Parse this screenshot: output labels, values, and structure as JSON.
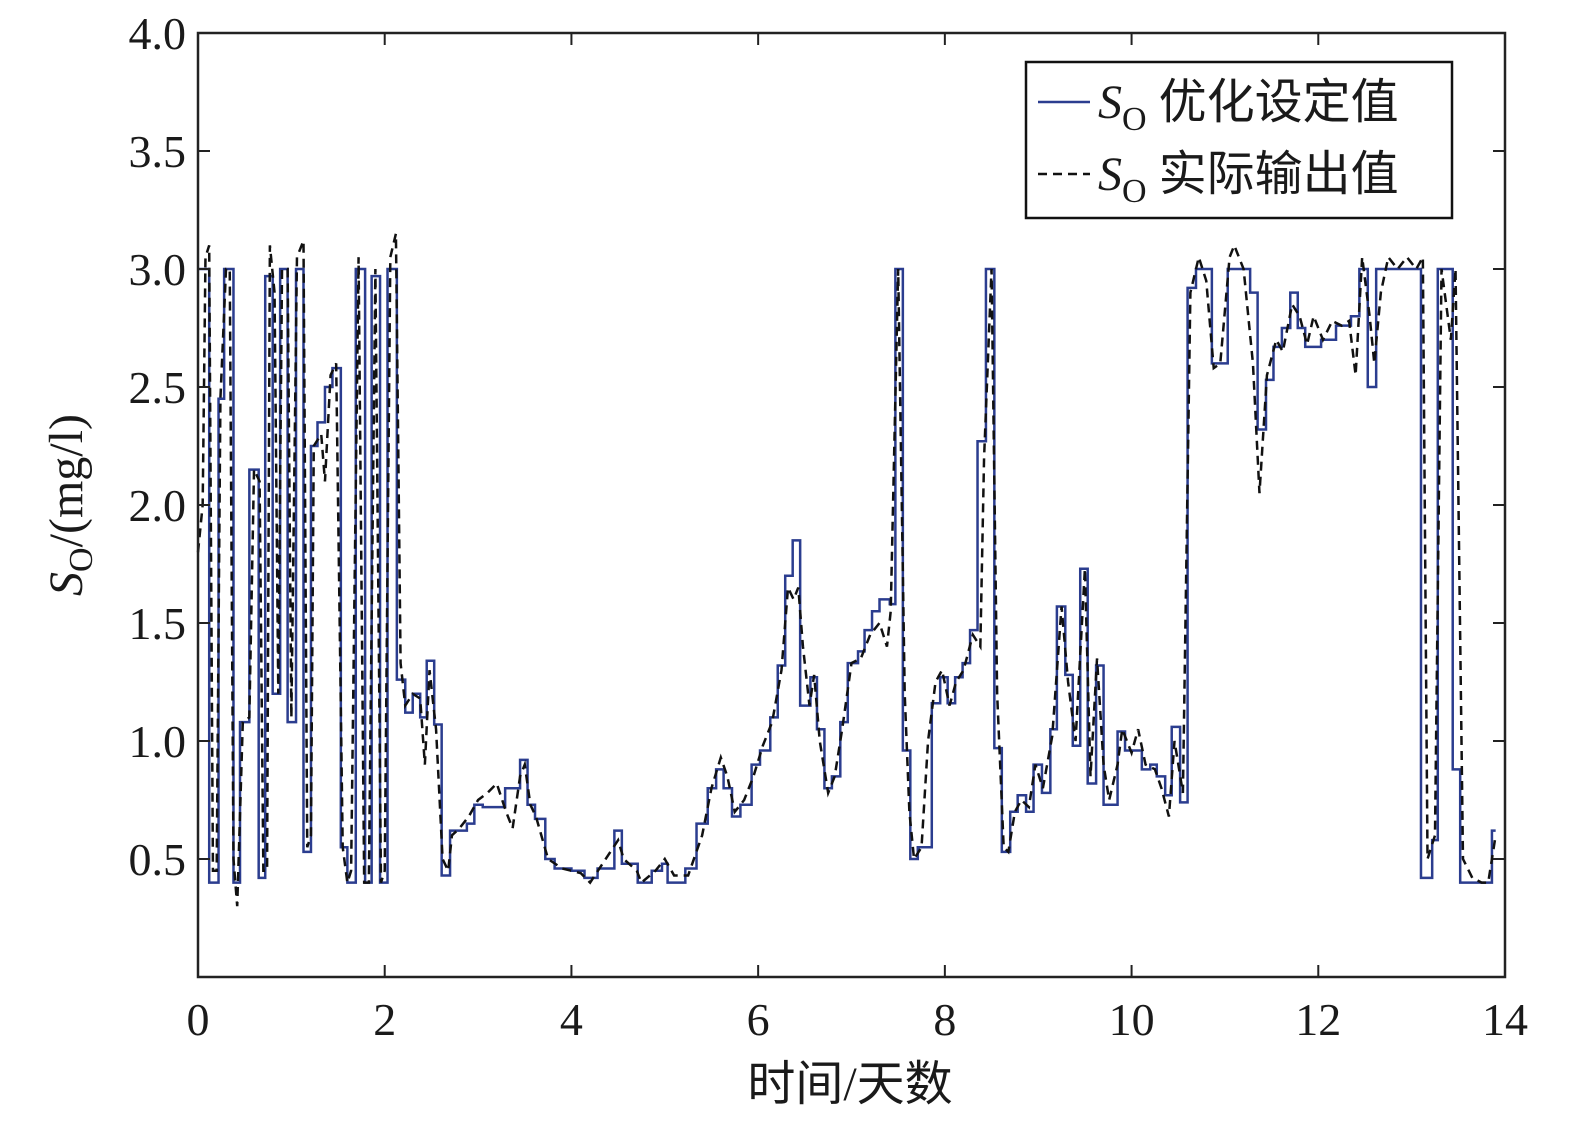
{
  "chart_data": {
    "type": "line",
    "xlabel": "时间/天数",
    "ylabel": {
      "symbol": "S",
      "subscript": "O",
      "text": "/(mg/l)"
    },
    "legend_symbol": {
      "symbol": "S",
      "subscript": "O"
    },
    "legend": "upper right",
    "xlim": [
      0,
      14
    ],
    "xticks": [
      0,
      2,
      4,
      6,
      8,
      10,
      12,
      14
    ],
    "ylim": [
      0,
      4
    ],
    "yticks": [
      0.5,
      {
        "value": 1,
        "label": "1.0"
      },
      1.5,
      {
        "value": 2,
        "label": "2.0"
      },
      2.5,
      {
        "value": 3,
        "label": "3.0"
      },
      3.5,
      {
        "value": 4,
        "label": "4.0"
      }
    ],
    "series": [
      {
        "name": "优化设定值",
        "color": "#2b3d8f",
        "step": "post",
        "x": [
          0,
          0.12,
          0.22,
          0.28,
          0.38,
          0.45,
          0.55,
          0.65,
          0.72,
          0.8,
          0.88,
          0.96,
          1.05,
          1.13,
          1.21,
          1.28,
          1.36,
          1.44,
          1.53,
          1.6,
          1.69,
          1.79,
          1.86,
          1.95,
          2.03,
          2.13,
          2.22,
          2.3,
          2.38,
          2.45,
          2.53,
          2.61,
          2.7,
          2.88,
          2.96,
          3.05,
          3.29,
          3.45,
          3.53,
          3.61,
          3.72,
          3.82,
          4.0,
          4.14,
          4.28,
          4.46,
          4.54,
          4.71,
          4.86,
          4.97,
          5.03,
          5.22,
          5.34,
          5.46,
          5.55,
          5.63,
          5.72,
          5.81,
          5.93,
          6.02,
          6.13,
          6.21,
          6.29,
          6.37,
          6.45,
          6.56,
          6.63,
          6.71,
          6.79,
          6.88,
          6.96,
          7.07,
          7.14,
          7.22,
          7.3,
          7.41,
          7.47,
          7.55,
          7.63,
          7.71,
          7.86,
          7.95,
          8.03,
          8.11,
          8.19,
          8.27,
          8.35,
          8.44,
          8.53,
          8.61,
          8.7,
          8.78,
          8.87,
          8.95,
          9.04,
          9.13,
          9.2,
          9.29,
          9.37,
          9.45,
          9.53,
          9.62,
          9.7,
          9.85,
          9.93,
          10.11,
          10.2,
          10.27,
          10.36,
          10.43,
          10.52,
          10.6,
          10.69,
          10.86,
          11.03,
          11.27,
          11.35,
          11.44,
          11.52,
          11.61,
          11.7,
          11.78,
          11.86,
          12.03,
          12.19,
          12.35,
          12.44,
          12.53,
          12.62,
          13.1,
          13.22,
          13.28,
          13.44,
          13.52,
          13.86,
          13.9
        ],
        "values": [
          3.0,
          0.4,
          2.45,
          3.0,
          0.4,
          1.08,
          2.15,
          0.42,
          2.97,
          1.2,
          3.0,
          1.08,
          3.0,
          0.53,
          2.25,
          2.35,
          2.5,
          2.58,
          0.55,
          0.4,
          3.0,
          0.4,
          2.97,
          0.4,
          3.0,
          1.26,
          1.12,
          1.2,
          1.1,
          1.34,
          1.07,
          0.43,
          0.62,
          0.65,
          0.73,
          0.72,
          0.8,
          0.92,
          0.73,
          0.67,
          0.5,
          0.46,
          0.45,
          0.42,
          0.46,
          0.62,
          0.48,
          0.4,
          0.45,
          0.48,
          0.4,
          0.46,
          0.65,
          0.8,
          0.88,
          0.8,
          0.68,
          0.73,
          0.9,
          0.96,
          1.1,
          1.32,
          1.7,
          1.85,
          1.15,
          1.27,
          1.05,
          0.8,
          0.85,
          1.08,
          1.33,
          1.38,
          1.47,
          1.55,
          1.6,
          1.58,
          3.0,
          0.96,
          0.5,
          0.55,
          1.16,
          1.27,
          1.16,
          1.27,
          1.33,
          1.47,
          2.27,
          3.0,
          0.97,
          0.53,
          0.7,
          0.77,
          0.7,
          0.9,
          0.78,
          1.05,
          1.57,
          1.28,
          0.98,
          1.73,
          0.82,
          1.32,
          0.73,
          1.04,
          0.96,
          0.88,
          0.9,
          0.85,
          0.77,
          1.06,
          0.74,
          2.92,
          3.0,
          2.6,
          3.0,
          2.9,
          2.32,
          2.53,
          2.67,
          2.75,
          2.9,
          2.75,
          2.67,
          2.7,
          2.76,
          2.8,
          3.0,
          2.5,
          3.0,
          0.42,
          0.58,
          3.0,
          0.88,
          0.4,
          0.62,
          0.62
        ]
      },
      {
        "name": "实际输出值",
        "color": "#111111",
        "dash": true,
        "x": [
          0,
          0.05,
          0.08,
          0.12,
          0.16,
          0.2,
          0.24,
          0.3,
          0.34,
          0.38,
          0.42,
          0.48,
          0.55,
          0.6,
          0.66,
          0.7,
          0.74,
          0.77,
          0.82,
          0.86,
          0.9,
          0.96,
          1.0,
          1.06,
          1.13,
          1.17,
          1.21,
          1.24,
          1.32,
          1.36,
          1.42,
          1.48,
          1.55,
          1.6,
          1.64,
          1.72,
          1.78,
          1.83,
          1.9,
          1.96,
          2.0,
          2.06,
          2.12,
          2.17,
          2.22,
          2.3,
          2.38,
          2.43,
          2.48,
          2.55,
          2.62,
          2.68,
          2.72,
          2.8,
          2.9,
          3.0,
          3.1,
          3.2,
          3.3,
          3.37,
          3.45,
          3.5,
          3.56,
          3.62,
          3.75,
          3.9,
          4.1,
          4.2,
          4.3,
          4.5,
          4.56,
          4.7,
          4.75,
          4.9,
          5.0,
          5.1,
          5.25,
          5.4,
          5.5,
          5.6,
          5.67,
          5.75,
          5.85,
          5.95,
          6.05,
          6.15,
          6.25,
          6.32,
          6.38,
          6.43,
          6.48,
          6.55,
          6.6,
          6.66,
          6.75,
          6.82,
          6.9,
          7.0,
          7.1,
          7.2,
          7.3,
          7.38,
          7.42,
          7.5,
          7.57,
          7.62,
          7.67,
          7.75,
          7.82,
          7.9,
          7.97,
          8.05,
          8.12,
          8.2,
          8.3,
          8.38,
          8.42,
          8.5,
          8.56,
          8.63,
          8.68,
          8.75,
          8.82,
          8.9,
          8.97,
          9.05,
          9.15,
          9.25,
          9.32,
          9.4,
          9.5,
          9.56,
          9.63,
          9.7,
          9.76,
          9.85,
          9.9,
          10.0,
          10.07,
          10.15,
          10.25,
          10.32,
          10.4,
          10.46,
          10.55,
          10.63,
          10.72,
          10.8,
          10.88,
          10.95,
          11.05,
          11.1,
          11.2,
          11.3,
          11.37,
          11.45,
          11.55,
          11.62,
          11.72,
          11.8,
          11.88,
          11.95,
          12.05,
          12.15,
          12.25,
          12.33,
          12.4,
          12.47,
          12.55,
          12.6,
          12.67,
          12.75,
          12.85,
          12.95,
          13.05,
          13.12,
          13.17,
          13.25,
          13.32,
          13.42,
          13.47,
          13.55,
          13.65,
          13.75,
          13.82,
          13.9
        ],
        "values": [
          1.8,
          2.0,
          3.05,
          3.1,
          0.45,
          0.45,
          2.45,
          3.0,
          3.0,
          0.5,
          0.3,
          1.08,
          1.1,
          2.15,
          2.1,
          0.45,
          0.45,
          3.1,
          2.9,
          1.2,
          3.0,
          3.0,
          1.1,
          3.05,
          3.12,
          0.55,
          0.6,
          2.25,
          2.3,
          2.1,
          2.55,
          2.6,
          0.55,
          0.4,
          0.45,
          3.05,
          0.4,
          0.4,
          3.0,
          0.4,
          0.45,
          3.05,
          3.15,
          1.33,
          1.15,
          1.2,
          1.18,
          0.9,
          1.3,
          1.05,
          0.5,
          0.45,
          0.6,
          0.63,
          0.68,
          0.75,
          0.78,
          0.82,
          0.7,
          0.63,
          0.85,
          0.9,
          0.73,
          0.68,
          0.5,
          0.46,
          0.44,
          0.4,
          0.46,
          0.58,
          0.5,
          0.45,
          0.4,
          0.45,
          0.5,
          0.43,
          0.43,
          0.6,
          0.8,
          0.93,
          0.85,
          0.7,
          0.75,
          0.85,
          0.98,
          1.08,
          1.3,
          1.65,
          1.6,
          1.65,
          1.4,
          1.15,
          1.28,
          1.0,
          0.78,
          0.85,
          1.05,
          1.33,
          1.35,
          1.45,
          1.5,
          1.4,
          1.55,
          3.0,
          1.2,
          0.7,
          0.5,
          0.55,
          1.0,
          1.25,
          1.3,
          1.15,
          1.25,
          1.3,
          1.45,
          1.4,
          2.2,
          3.0,
          1.2,
          0.55,
          0.53,
          0.7,
          0.75,
          0.72,
          0.9,
          0.8,
          1.02,
          1.57,
          1.25,
          1.0,
          1.73,
          0.85,
          1.35,
          0.9,
          0.75,
          0.9,
          1.05,
          0.95,
          1.05,
          0.9,
          0.88,
          0.8,
          0.68,
          1.0,
          0.78,
          2.9,
          3.05,
          2.95,
          2.58,
          2.6,
          3.05,
          3.1,
          3.0,
          2.6,
          2.05,
          2.55,
          2.7,
          2.65,
          2.85,
          2.8,
          2.68,
          2.8,
          2.7,
          2.78,
          2.76,
          2.78,
          2.55,
          3.05,
          2.8,
          2.6,
          2.9,
          3.05,
          3.0,
          3.05,
          3.0,
          3.05,
          0.5,
          0.6,
          3.0,
          2.7,
          3.0,
          0.5,
          0.42,
          0.4,
          0.4,
          0.6
        ]
      }
    ]
  }
}
